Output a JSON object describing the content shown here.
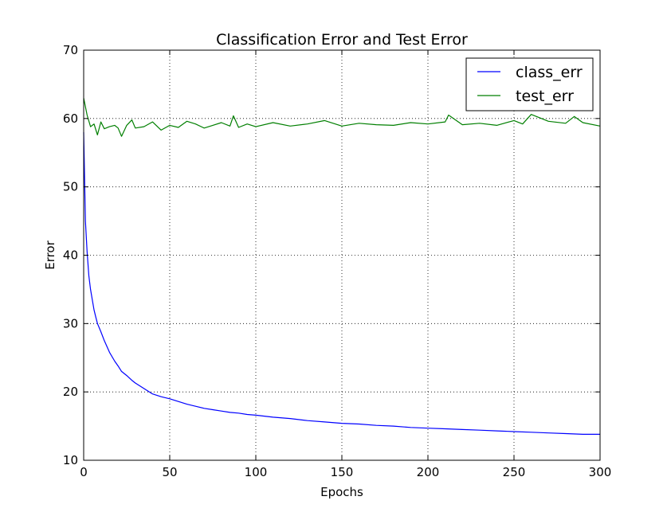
{
  "chart_data": {
    "type": "line",
    "title": "Classification Error and Test Error",
    "xlabel": "Epochs",
    "ylabel": "Error",
    "xlim": [
      0,
      300
    ],
    "ylim": [
      10,
      70
    ],
    "xticks": [
      0,
      50,
      100,
      150,
      200,
      250,
      300
    ],
    "yticks": [
      10,
      20,
      30,
      40,
      50,
      60,
      70
    ],
    "grid": true,
    "legend_position": "top-right",
    "series": [
      {
        "name": "class_err",
        "color": "#0000ff",
        "x": [
          0,
          1,
          2,
          3,
          4,
          5,
          6,
          7,
          8,
          10,
          12,
          15,
          18,
          20,
          22,
          25,
          28,
          30,
          35,
          40,
          45,
          50,
          55,
          60,
          65,
          70,
          75,
          80,
          85,
          90,
          95,
          100,
          110,
          120,
          130,
          140,
          150,
          160,
          170,
          180,
          190,
          200,
          210,
          220,
          230,
          240,
          250,
          260,
          270,
          280,
          290,
          300
        ],
        "y": [
          58.0,
          45.0,
          40.5,
          37.0,
          35.0,
          33.5,
          32.0,
          31.0,
          30.0,
          28.8,
          27.5,
          25.8,
          24.5,
          23.8,
          23.0,
          22.4,
          21.7,
          21.3,
          20.5,
          19.7,
          19.3,
          19.0,
          18.6,
          18.2,
          17.9,
          17.6,
          17.4,
          17.2,
          17.0,
          16.9,
          16.7,
          16.6,
          16.3,
          16.1,
          15.8,
          15.6,
          15.4,
          15.3,
          15.1,
          15.0,
          14.8,
          14.7,
          14.6,
          14.5,
          14.4,
          14.3,
          14.2,
          14.1,
          14.0,
          13.9,
          13.8,
          13.8
        ]
      },
      {
        "name": "test_err",
        "color": "#007f00",
        "x": [
          0,
          2,
          4,
          6,
          8,
          10,
          12,
          15,
          18,
          20,
          22,
          25,
          28,
          30,
          35,
          40,
          45,
          50,
          55,
          60,
          65,
          70,
          75,
          80,
          85,
          87,
          90,
          95,
          100,
          110,
          120,
          130,
          140,
          150,
          160,
          170,
          180,
          190,
          200,
          210,
          212,
          220,
          230,
          240,
          250,
          255,
          260,
          270,
          280,
          285,
          290,
          300
        ],
        "y": [
          63.0,
          60.5,
          58.8,
          59.2,
          57.6,
          59.5,
          58.5,
          58.8,
          59.0,
          58.6,
          57.4,
          59.0,
          59.8,
          58.6,
          58.8,
          59.5,
          58.3,
          59.0,
          58.7,
          59.6,
          59.2,
          58.6,
          59.0,
          59.4,
          58.9,
          60.4,
          58.7,
          59.2,
          58.8,
          59.4,
          58.9,
          59.2,
          59.7,
          58.9,
          59.3,
          59.1,
          59.0,
          59.4,
          59.2,
          59.5,
          60.5,
          59.1,
          59.3,
          59.0,
          59.7,
          59.2,
          60.6,
          59.6,
          59.3,
          60.3,
          59.4,
          58.9
        ]
      }
    ]
  }
}
